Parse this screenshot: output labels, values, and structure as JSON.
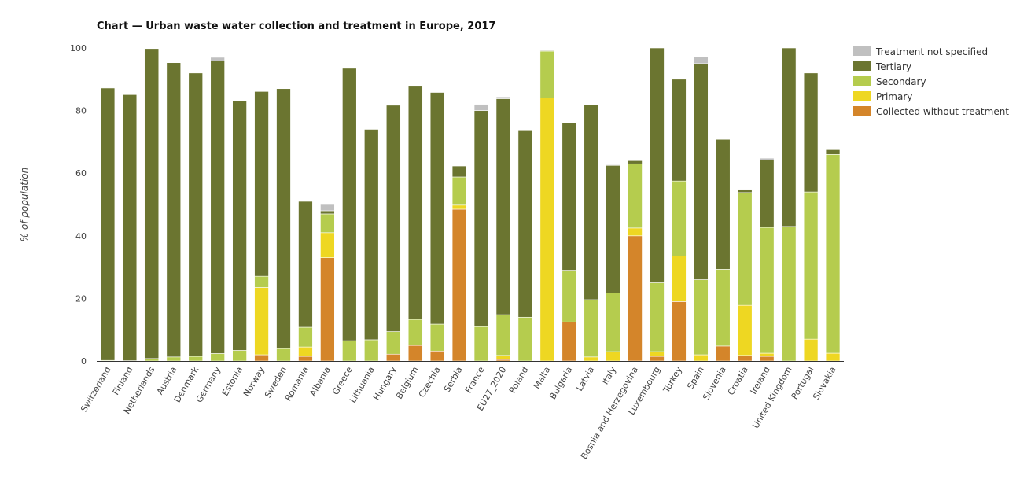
{
  "chart_data": {
    "type": "bar",
    "stacked": true,
    "title": "Chart — Urban waste water collection and treatment in Europe, 2017",
    "xlabel": "",
    "ylabel": "% of population",
    "ylim": [
      0,
      100
    ],
    "yticks": [
      0,
      20,
      40,
      60,
      80,
      100
    ],
    "grid": false,
    "legend_position": "top-right",
    "categories": [
      "Switzerland",
      "Finland",
      "Netherlands",
      "Austria",
      "Denmark",
      "Germany",
      "Estonia",
      "Norway",
      "Sweden",
      "Romania",
      "Albania",
      "Greece",
      "Lithuania",
      "Hungary",
      "Belgium",
      "Czechia",
      "Serbia",
      "France",
      "EU27_2020",
      "Poland",
      "Malta",
      "Bulgaria",
      "Latvia",
      "Italy",
      "Bosnia and Herzegovina",
      "Luxembourg",
      "Turkey",
      "Spain",
      "Slovenia",
      "Croatia",
      "Ireland",
      "United Kingdom",
      "Portugal",
      "Slovakia"
    ],
    "series": [
      {
        "name": "Collected without treatment",
        "color": "#d4852a",
        "values": [
          0,
          0,
          0,
          0,
          0,
          0,
          0,
          2,
          0,
          1.5,
          33,
          0,
          0,
          2.2,
          5,
          3.2,
          48.5,
          0,
          0.5,
          0,
          0,
          12.5,
          0,
          0,
          40,
          1.5,
          19,
          0,
          4.8,
          1.8,
          1.5,
          0,
          0,
          0
        ]
      },
      {
        "name": "Primary",
        "color": "#eed722",
        "values": [
          0,
          0,
          0,
          0,
          0,
          0,
          0,
          21.5,
          0,
          3,
          8,
          0,
          0,
          0,
          0,
          0,
          1.3,
          0,
          1.3,
          0,
          84,
          0,
          1.3,
          3,
          2.5,
          1.5,
          14.5,
          2,
          0,
          16,
          1,
          0,
          7,
          2.5
        ]
      },
      {
        "name": "Secondary",
        "color": "#b5cc4e",
        "values": [
          0.2,
          0.1,
          0.8,
          1.3,
          1.5,
          2.4,
          3.4,
          3.6,
          4,
          6.3,
          6,
          6.5,
          6.8,
          7.2,
          8.3,
          8.6,
          9,
          11,
          13,
          14,
          15,
          16.5,
          18.3,
          18.7,
          20.5,
          22,
          24,
          24,
          24.5,
          36,
          40.2,
          43,
          47,
          63.5
        ]
      },
      {
        "name": "Tertiary",
        "color": "#6b7530",
        "values": [
          87,
          85,
          99,
          94,
          90.5,
          93.5,
          79.6,
          59,
          83,
          40.2,
          1,
          87,
          67.2,
          72.3,
          74.7,
          74,
          3.5,
          69,
          69,
          59.8,
          0.2,
          47,
          62.3,
          40.8,
          1,
          75,
          32.5,
          69,
          41.5,
          1,
          21.5,
          57,
          38,
          1.5
        ]
      },
      {
        "name": "Treatment not specified",
        "color": "#c0c0c0",
        "values": [
          0,
          0,
          0,
          0,
          0,
          1.1,
          0,
          0,
          0,
          0,
          2,
          0,
          0,
          0,
          0,
          0,
          0,
          2,
          0.6,
          0,
          0,
          0,
          0,
          0.2,
          0,
          0,
          0,
          2.2,
          0,
          0,
          0.6,
          0,
          0,
          0
        ]
      }
    ]
  }
}
